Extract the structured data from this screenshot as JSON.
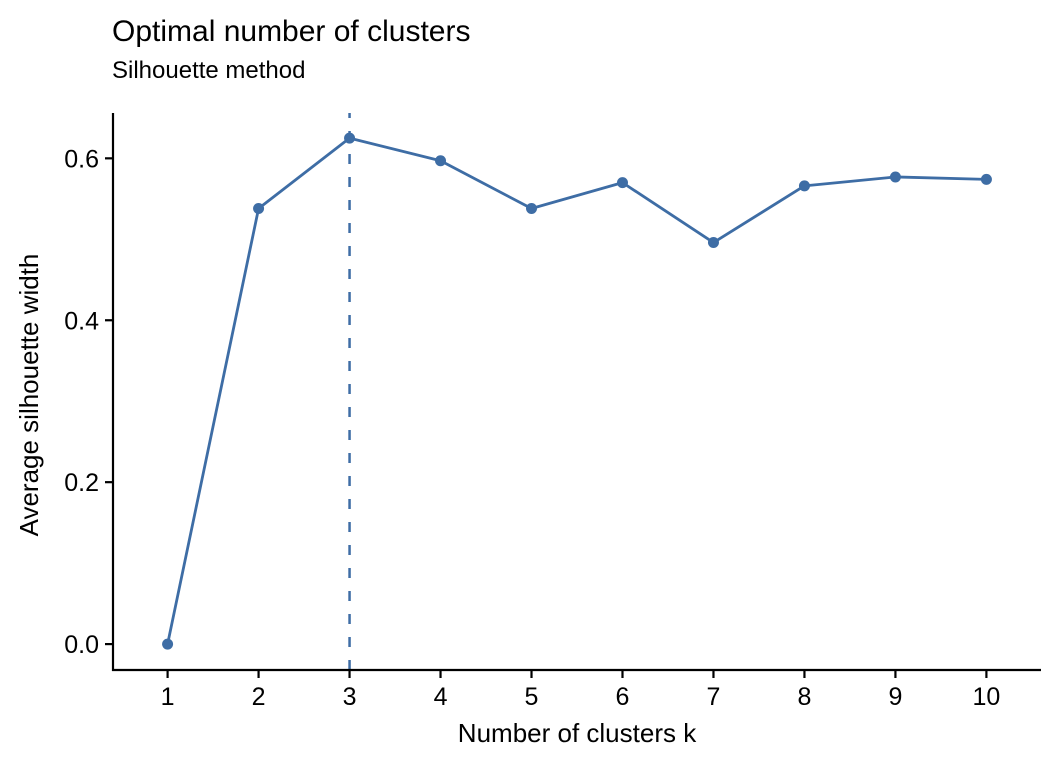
{
  "figure": {
    "title": "Optimal number of clusters",
    "subtitle": "Silhouette method",
    "xlabel": "Number of clusters k",
    "ylabel": "Average silhouette width"
  },
  "chart_data": {
    "type": "line",
    "title": "Optimal number of clusters",
    "subtitle": "Silhouette method",
    "xlabel": "Number of clusters k",
    "ylabel": "Average silhouette width",
    "x": [
      1,
      2,
      3,
      4,
      5,
      6,
      7,
      8,
      9,
      10
    ],
    "values": [
      0.0,
      0.538,
      0.625,
      0.597,
      0.538,
      0.57,
      0.496,
      0.566,
      0.577,
      0.574
    ],
    "xticks": [
      1,
      2,
      3,
      4,
      5,
      6,
      7,
      8,
      9,
      10
    ],
    "xtick_labels": [
      "1",
      "2",
      "3",
      "4",
      "5",
      "6",
      "7",
      "8",
      "9",
      "10"
    ],
    "yticks": [
      0.0,
      0.2,
      0.4,
      0.6
    ],
    "ytick_labels": [
      "0.0",
      "0.2",
      "0.4",
      "0.6"
    ],
    "xlim": [
      0.4,
      10.6
    ],
    "ylim": [
      -0.032,
      0.656
    ],
    "optimal_k": 3,
    "vline_x": 3,
    "vline_style": "dashed",
    "grid": false,
    "legend": "none",
    "marker": "circle",
    "line_color": "#3E6DA5",
    "axis_color": "#000000",
    "text_color": "#000000",
    "background": "#FFFFFF"
  }
}
